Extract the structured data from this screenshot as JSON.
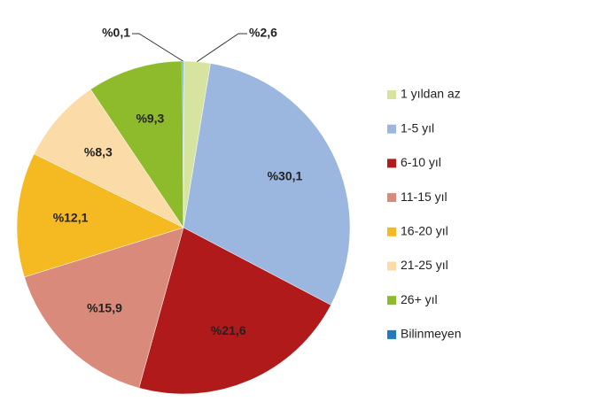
{
  "chart_data": {
    "type": "pie",
    "categories": [
      "1 yıldan az",
      "1-5 yıl",
      "6-10 yıl",
      "11-15 yıl",
      "16-20 yıl",
      "21-25 yıl",
      "26+ yıl",
      "Bilinmeyen"
    ],
    "values": [
      2.6,
      30.1,
      21.6,
      15.9,
      12.1,
      8.3,
      9.3,
      0.1
    ],
    "value_labels": [
      "%2,6",
      "%30,1",
      "%21,6",
      "%15,9",
      "%12,1",
      "%8,3",
      "%9,3",
      "%0,1"
    ],
    "colors": [
      "#d7e4a0",
      "#9bb7e0",
      "#b01a1a",
      "#d98a7a",
      "#f5b921",
      "#fbdba8",
      "#8dbb2b",
      "#1f7bbf"
    ],
    "legend": "right"
  }
}
